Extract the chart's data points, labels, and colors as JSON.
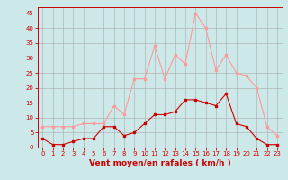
{
  "x": [
    0,
    1,
    2,
    3,
    4,
    5,
    6,
    7,
    8,
    9,
    10,
    11,
    12,
    13,
    14,
    15,
    16,
    17,
    18,
    19,
    20,
    21,
    22,
    23
  ],
  "y_mean": [
    3,
    1,
    1,
    2,
    3,
    3,
    7,
    7,
    4,
    5,
    8,
    11,
    11,
    12,
    16,
    16,
    15,
    14,
    18,
    8,
    7,
    3,
    1,
    1
  ],
  "y_gust": [
    7,
    7,
    7,
    7,
    8,
    8,
    8,
    14,
    11,
    23,
    23,
    34,
    23,
    31,
    28,
    45,
    40,
    26,
    31,
    25,
    24,
    20,
    7,
    4
  ],
  "bg_color": "#cce8e8",
  "line_color_mean": "#cc0000",
  "line_color_gust": "#ff9999",
  "markersize": 2.0,
  "linewidth": 0.8,
  "xlabel": "Vent moyen/en rafales ( km/h )",
  "ylim": [
    0,
    47
  ],
  "yticks": [
    0,
    5,
    10,
    15,
    20,
    25,
    30,
    35,
    40,
    45
  ],
  "xticks": [
    0,
    1,
    2,
    3,
    4,
    5,
    6,
    7,
    8,
    9,
    10,
    11,
    12,
    13,
    14,
    15,
    16,
    17,
    18,
    19,
    20,
    21,
    22,
    23
  ],
  "grid_color": "#aaaaaa",
  "xlabel_fontsize": 6.5,
  "tick_fontsize": 5.0
}
